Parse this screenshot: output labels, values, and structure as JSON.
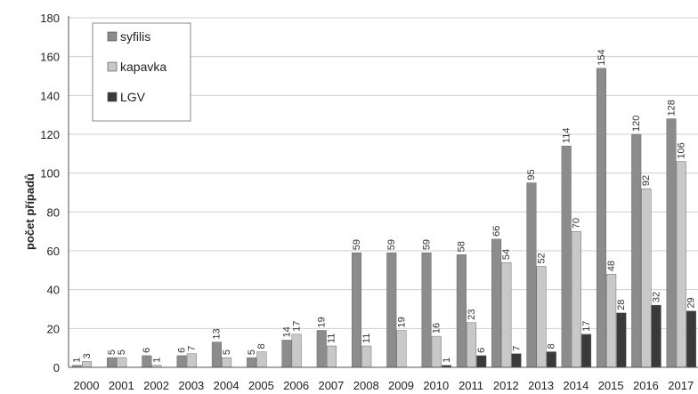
{
  "chart_data": {
    "type": "bar",
    "title": "",
    "xlabel": "",
    "ylabel": "počet případů",
    "ylim": [
      0,
      180
    ],
    "yticks": [
      0,
      20,
      40,
      60,
      80,
      100,
      120,
      140,
      160,
      180
    ],
    "grid": true,
    "legend": "top-left",
    "categories": [
      "2000",
      "2001",
      "2002",
      "2003",
      "2004",
      "2005",
      "2006",
      "2007",
      "2008",
      "2009",
      "2010",
      "2011",
      "2012",
      "2013",
      "2014",
      "2015",
      "2016",
      "2017"
    ],
    "series": [
      {
        "name": "syfilis",
        "color": "#8c8c8c",
        "values": [
          1,
          5,
          6,
          6,
          13,
          5,
          14,
          19,
          59,
          59,
          59,
          58,
          66,
          95,
          114,
          154,
          120,
          128
        ]
      },
      {
        "name": "kapavka",
        "color": "#c8c8c8",
        "values": [
          3,
          5,
          1,
          7,
          5,
          8,
          17,
          11,
          11,
          19,
          16,
          23,
          54,
          52,
          70,
          48,
          92,
          106
        ]
      },
      {
        "name": "LGV",
        "color": "#3a3a3a",
        "values": [
          null,
          null,
          null,
          null,
          null,
          null,
          null,
          null,
          null,
          null,
          1,
          6,
          7,
          8,
          17,
          28,
          32,
          29
        ]
      }
    ],
    "data_labels": [
      [
        "1",
        "5",
        "6",
        "6",
        "13",
        "5",
        "14",
        "19",
        "59",
        "59",
        "59",
        "58",
        "66",
        "95",
        "114",
        "154",
        "120",
        "128"
      ],
      [
        "3",
        "5",
        "1",
        "7",
        "5",
        "8",
        "17",
        "11",
        "11",
        "19",
        "16",
        "23",
        "54",
        "52",
        "70",
        "48",
        "92",
        "106"
      ],
      [
        "",
        "",
        "",
        "",
        "",
        "",
        "",
        "",
        "",
        "",
        "1",
        "6",
        "7",
        "8",
        "17",
        "28",
        "32",
        "29"
      ]
    ]
  }
}
